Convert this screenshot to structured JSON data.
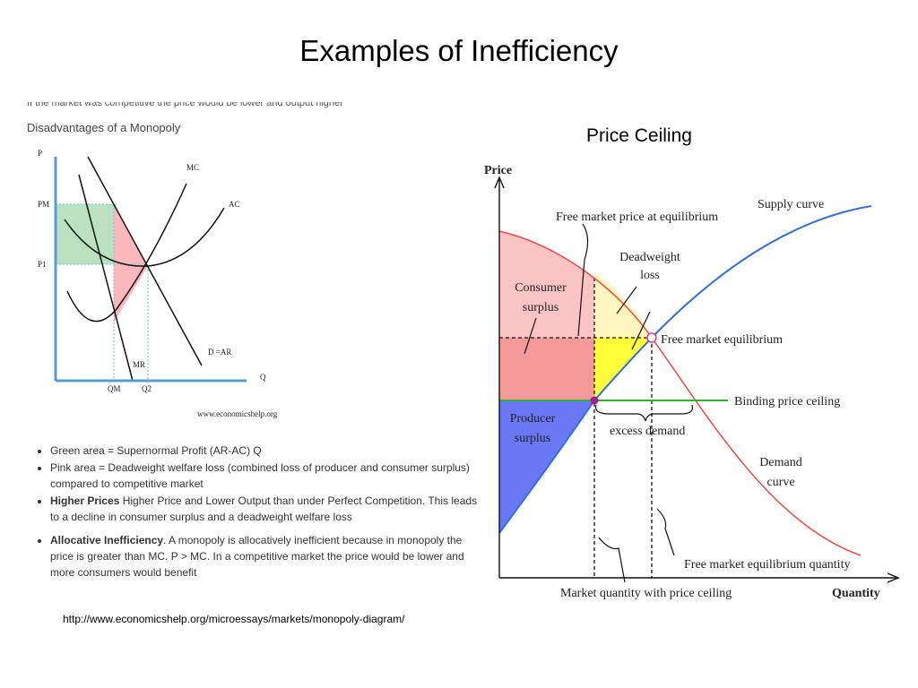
{
  "title": "Examples of Inefficiency",
  "monopoly": {
    "caption": "If the market was competitive the price would be lower and output higher",
    "heading": "Disadvantages of a Monopoly",
    "axis_p": "P",
    "axis_q": "Q",
    "pm": "PM",
    "p1": "P1",
    "qm": "QM",
    "q2": "Q2",
    "mc": "MC",
    "ac": "AC",
    "mr": "MR",
    "demand": "D =AR",
    "credit": "www.economicshelp.org"
  },
  "bullets": [
    {
      "text": "Green area = Supernormal Profit (AR-AC) Q"
    },
    {
      "text": "Pink area = Deadweight welfare loss (combined loss of producer and consumer surplus) compared to competitive market"
    },
    {
      "bold": "Higher Prices",
      "text": " Higher Price and Lower Output than under Perfect Competition. This leads to a decline in consumer surplus and a deadweight welfare loss"
    },
    {
      "bold": "Allocative Inefficiency",
      "text": ". A monopoly is allocatively inefficient because in monopoly the price is greater than MC. P > MC. In a competitive market the price would be lower and more consumers would benefit"
    }
  ],
  "source": "http://www.economicshelp.org/microessays/markets/monopoly-diagram/",
  "price_ceiling": {
    "heading": "Price Ceiling",
    "axis_y": "Price",
    "axis_x": "Quantity",
    "supply": "Supply curve",
    "free_price": "Free market price at equilibrium",
    "deadweight": [
      "Deadweight",
      "loss"
    ],
    "consumer": [
      "Consumer",
      "surplus"
    ],
    "equilibrium": "Free market equilibrium",
    "ceiling": "Binding price ceiling",
    "producer": [
      "Producer",
      "surplus"
    ],
    "excess": "excess demand",
    "demand": [
      "Demand",
      "curve"
    ],
    "eq_quantity": "Free market equilibrium quantity",
    "ceiling_quantity": "Market quantity with price ceiling"
  }
}
